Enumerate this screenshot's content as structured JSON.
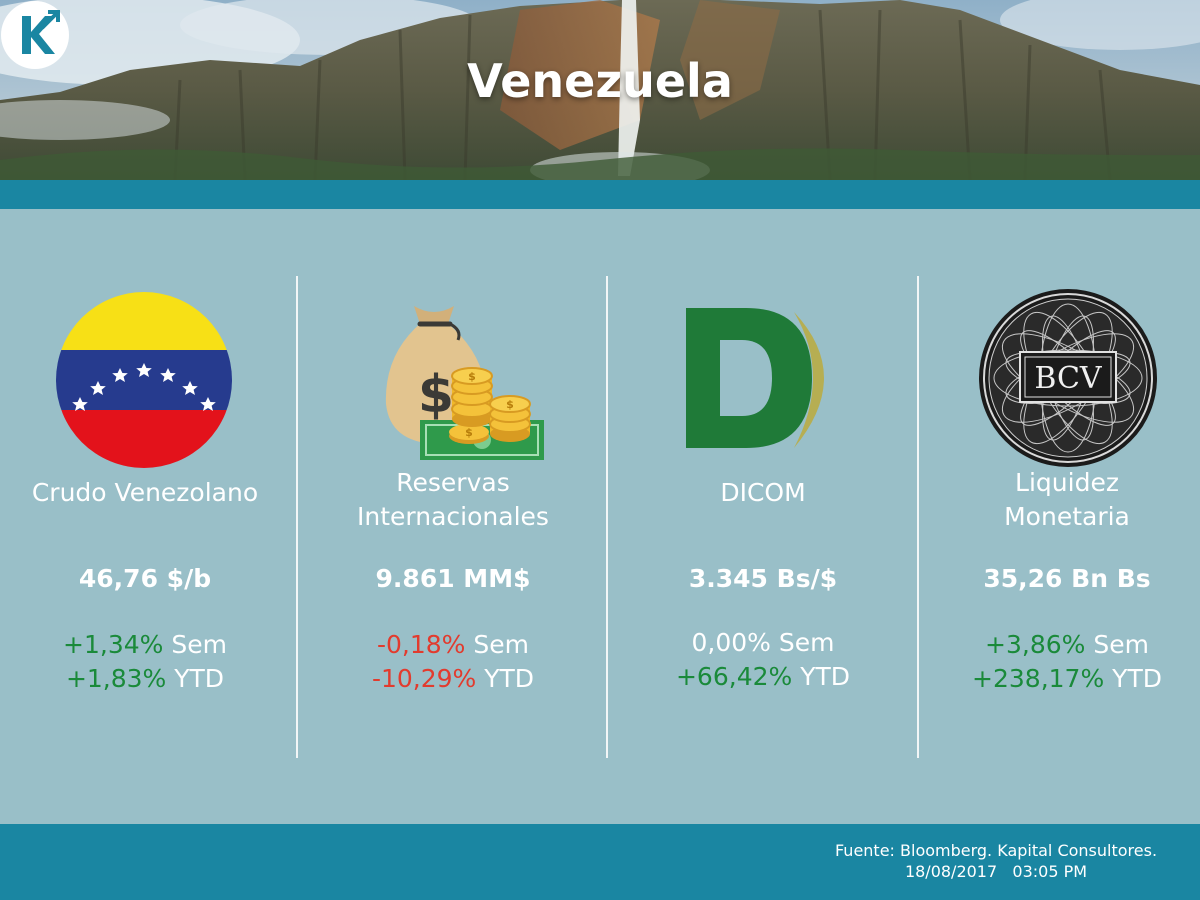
{
  "header": {
    "title": "Venezuela",
    "logo_letter": "K"
  },
  "colors": {
    "background": "#99bfc8",
    "band": "#1a86a2",
    "positive": "#1a8a3a",
    "negative": "#e23b2e"
  },
  "indicators": [
    {
      "icon": "venezuela-flag-icon",
      "label_lines": [
        "Crudo Venezolano"
      ],
      "value": "46,76 $/b",
      "week": {
        "pct": "+1,34%",
        "unit": "Sem",
        "sign": "pos"
      },
      "ytd": {
        "pct": "+1,83%",
        "unit": "YTD",
        "sign": "pos"
      }
    },
    {
      "icon": "money-bag-icon",
      "label_lines": [
        "Reservas",
        "Internacionales"
      ],
      "value": "9.861 MM$",
      "week": {
        "pct": "-0,18%",
        "unit": "Sem",
        "sign": "neg"
      },
      "ytd": {
        "pct": "-10,29%",
        "unit": "YTD",
        "sign": "neg"
      }
    },
    {
      "icon": "dicom-logo-icon",
      "label_lines": [
        "DICOM"
      ],
      "value": "3.345 Bs/$",
      "week": {
        "pct": "0,00%",
        "unit": "Sem",
        "sign": "neu"
      },
      "ytd": {
        "pct": "+66,42%",
        "unit": "YTD",
        "sign": "pos"
      }
    },
    {
      "icon": "bcv-seal-icon",
      "label_lines": [
        "Liquidez",
        "Monetaria"
      ],
      "value": "35,26 Bn Bs",
      "week": {
        "pct": "+3,86%",
        "unit": "Sem",
        "sign": "pos"
      },
      "ytd": {
        "pct": "+238,17%",
        "unit": "YTD",
        "sign": "pos"
      }
    }
  ],
  "bcv_text": "BCV",
  "footer": {
    "source": "Fuente: Bloomberg. Kapital Consultores.",
    "timestamp": "18/08/2017   03:05 PM"
  }
}
